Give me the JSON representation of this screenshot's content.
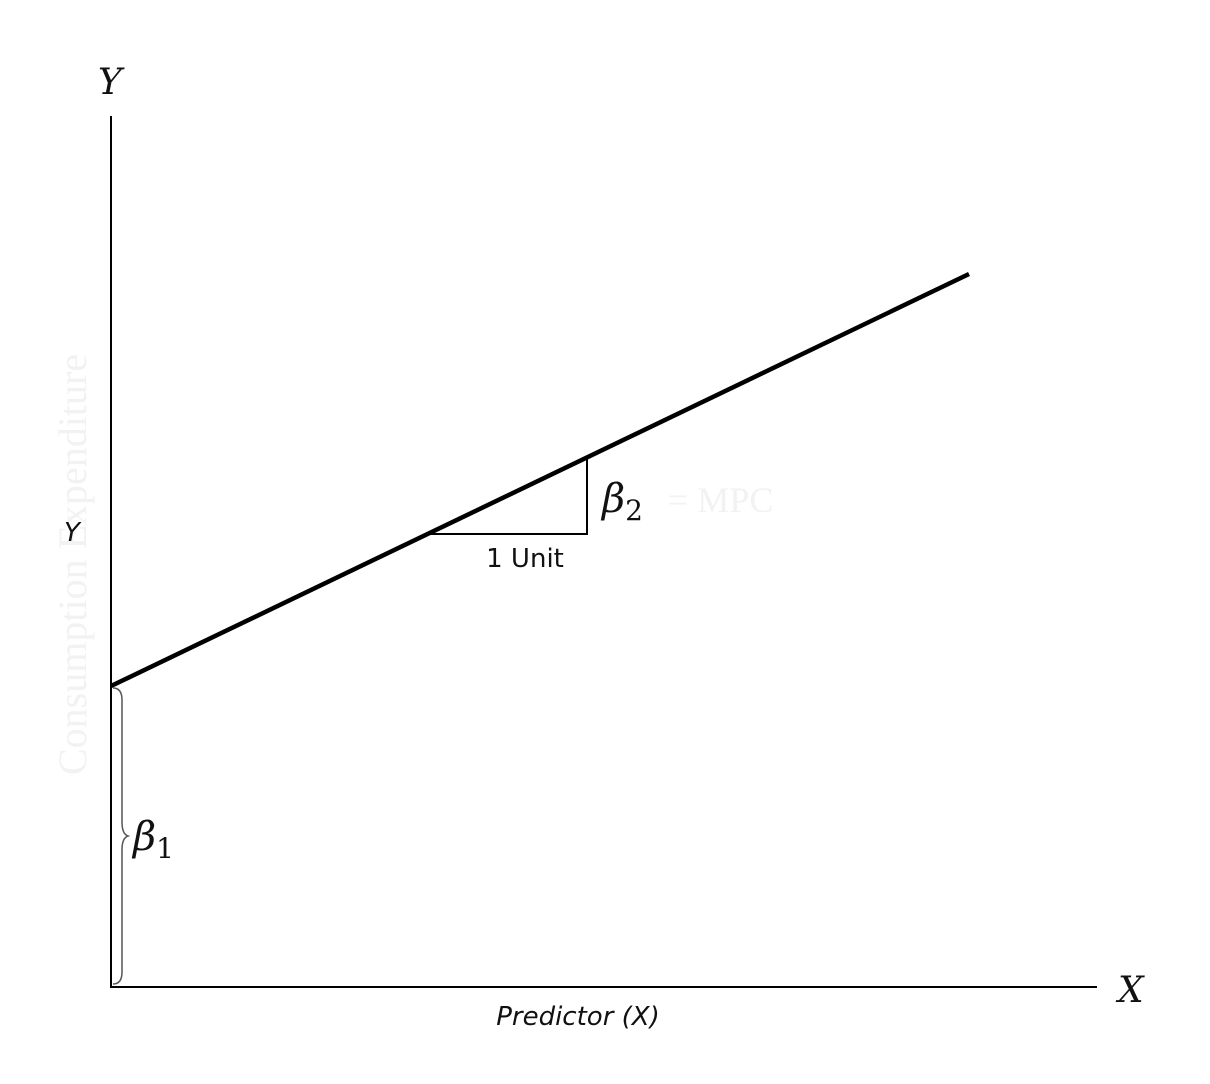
{
  "diagram": {
    "axis_top_label": "Y",
    "axis_right_label": "X",
    "y_axis_label": "Y",
    "x_axis_label": "Predictor (X)",
    "run_label": "1 Unit",
    "slope_symbol": "β",
    "slope_subscript": "2",
    "slope_faint_text": "= MPC",
    "intercept_symbol": "β",
    "intercept_subscript": "1",
    "faint_vertical_text": "Consumption Expenditure"
  },
  "colors": {
    "line": "#000000",
    "text": "#111111",
    "brace": "#555555",
    "faint": "#f2f2f2"
  }
}
